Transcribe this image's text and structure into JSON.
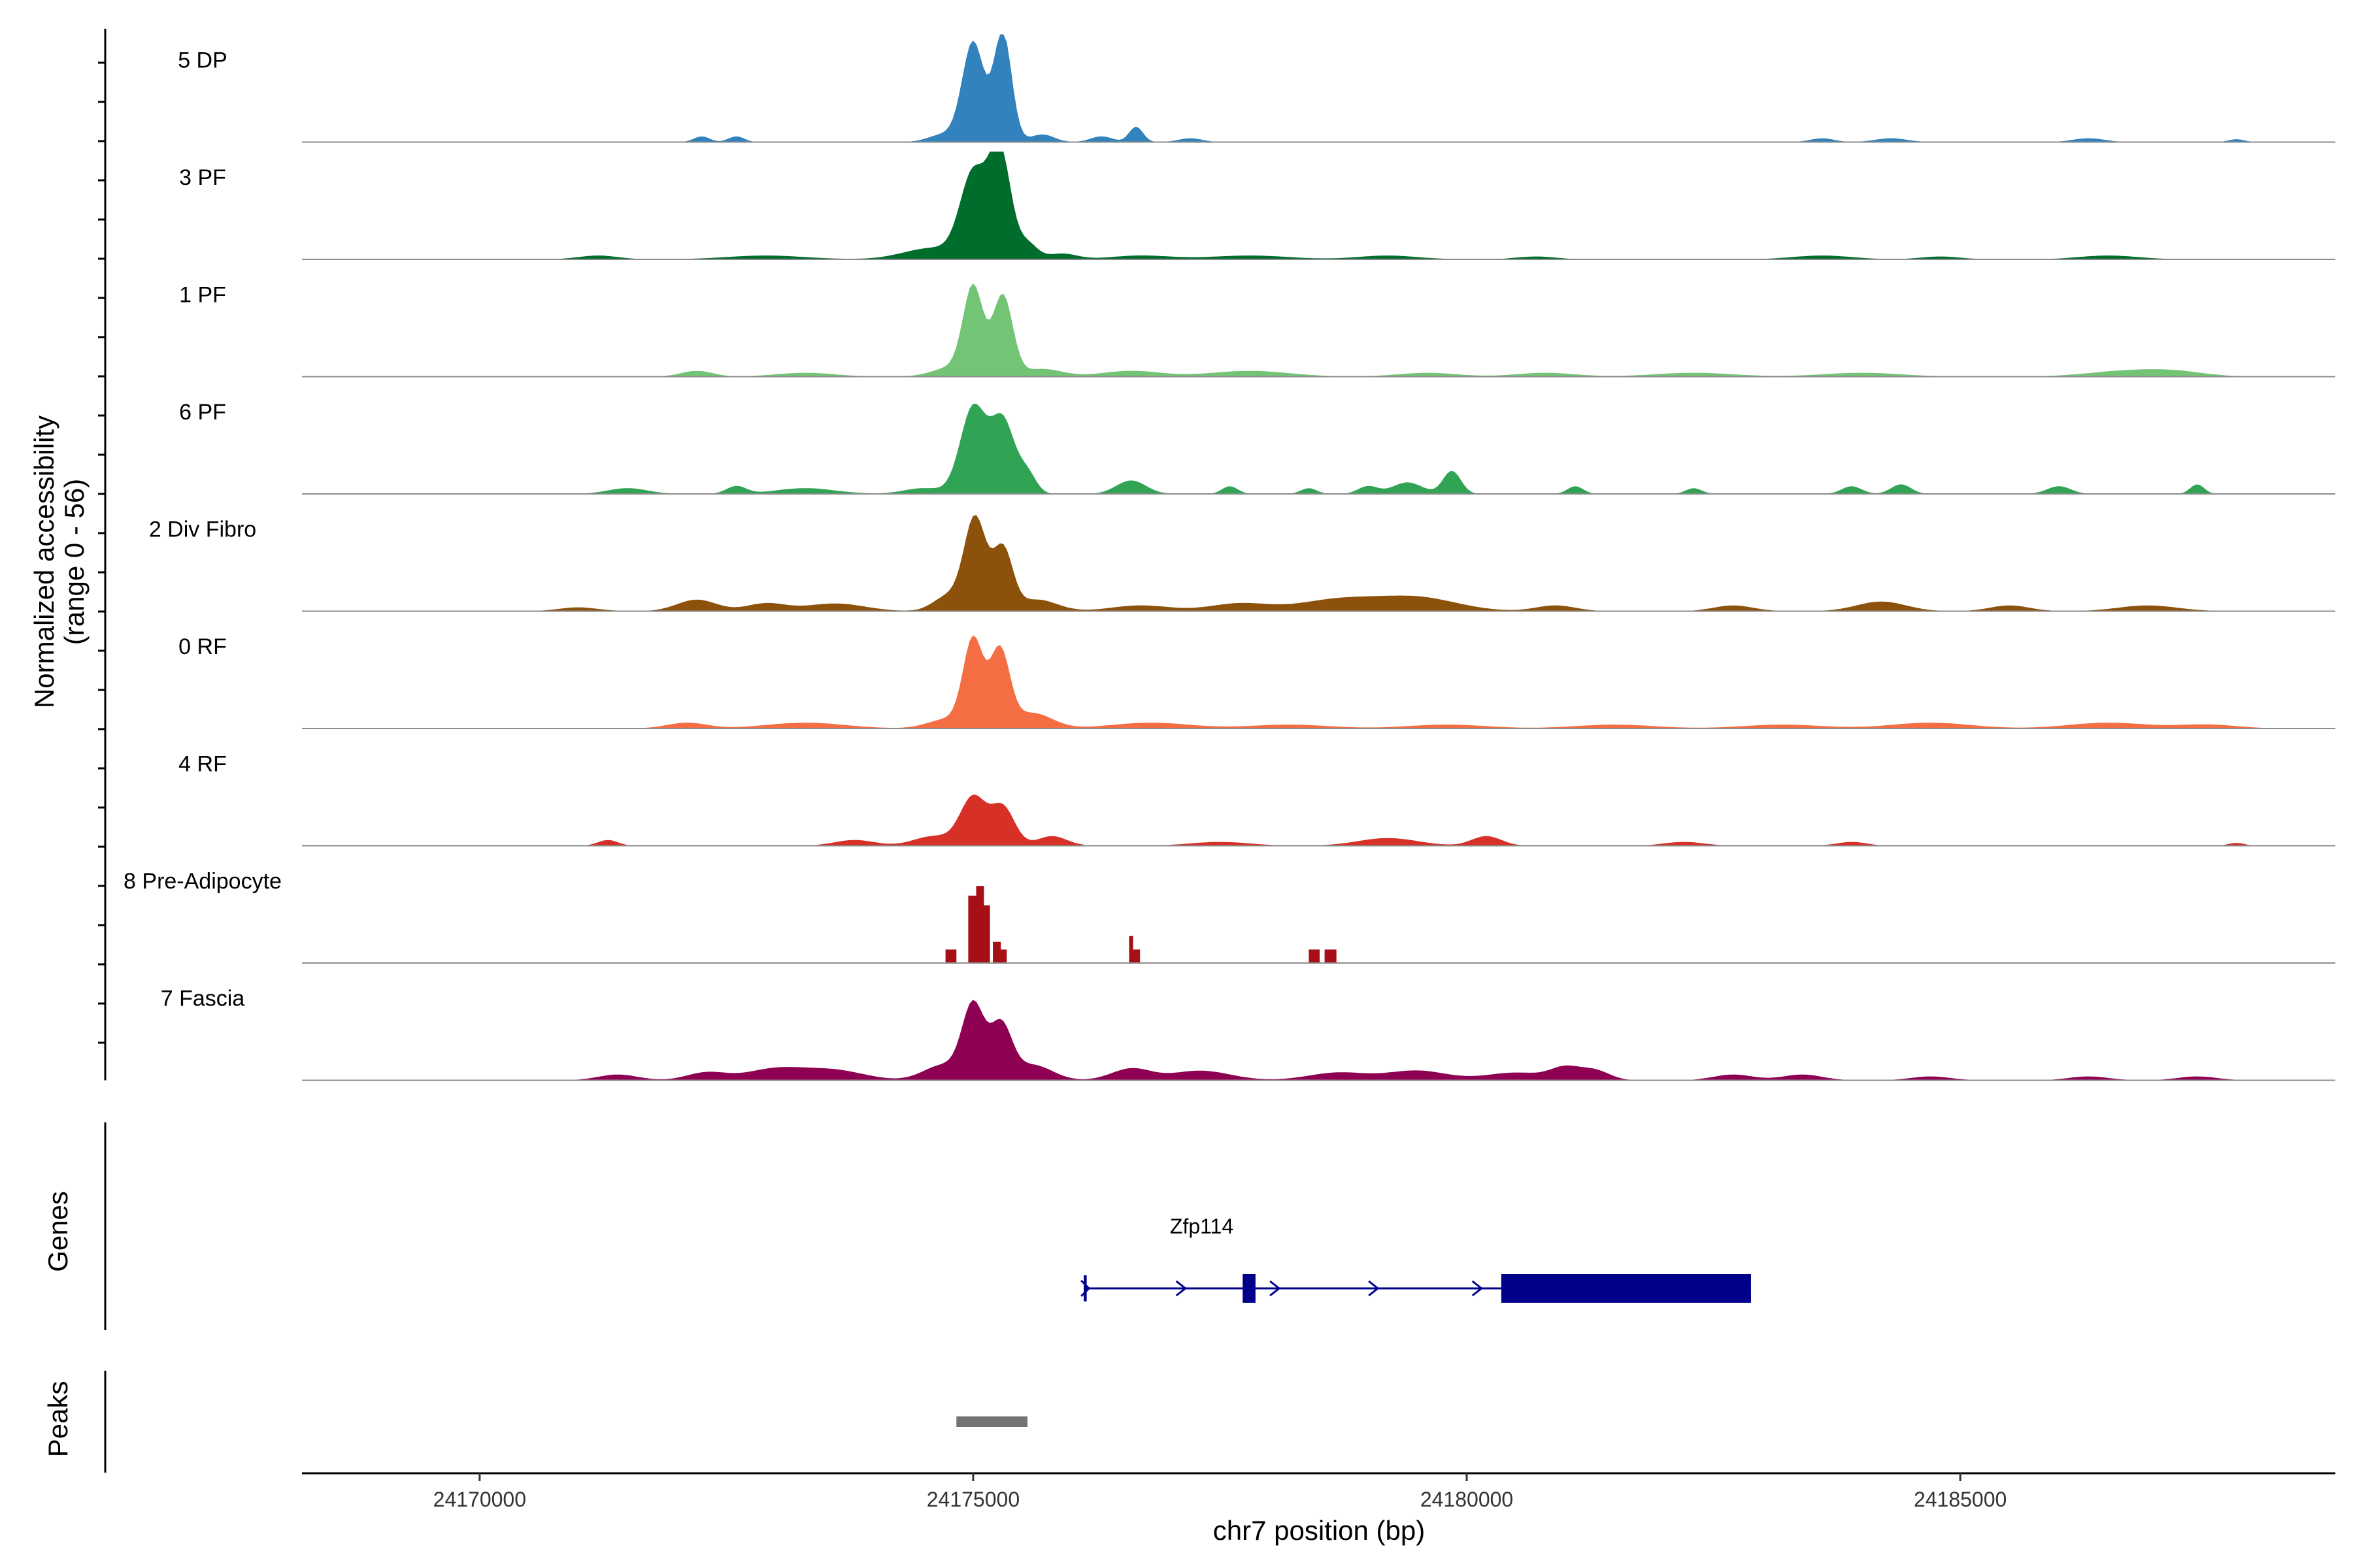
{
  "chart_data": {
    "type": "area",
    "title": "",
    "chromosome": "chr7",
    "xlabel": "chr7 position (bp)",
    "xlim": [
      24168200,
      24188800
    ],
    "xticks": [
      24170000,
      24175000,
      24180000,
      24185000
    ],
    "xtick_labels": [
      "24170000",
      "24175000",
      "24180000",
      "24185000"
    ],
    "ylabel_line1": "Normalized accessibility",
    "ylabel_line2": "(range 0 - 56)",
    "ylim": [
      0,
      56
    ],
    "tracks": [
      {
        "name": "5 DP",
        "color": "#3182bd",
        "peaks": [
          [
            24175000,
            52,
            110
          ],
          [
            24175300,
            57,
            90
          ],
          [
            24174700,
            4,
            150
          ],
          [
            24175700,
            4,
            120
          ],
          [
            24176300,
            3,
            110
          ],
          [
            24176650,
            8,
            70
          ],
          [
            24172250,
            3,
            80
          ],
          [
            24172600,
            3,
            80
          ],
          [
            24177200,
            2,
            120
          ],
          [
            24183600,
            2,
            120
          ],
          [
            24184300,
            2,
            160
          ],
          [
            24186300,
            2,
            160
          ],
          [
            24187800,
            1.5,
            80
          ]
        ]
      },
      {
        "name": "3 PF",
        "color": "#006d2c",
        "peaks": [
          [
            24175000,
            43,
            130
          ],
          [
            24175270,
            56,
            110
          ],
          [
            24174600,
            6,
            300
          ],
          [
            24175550,
            8,
            100
          ],
          [
            24175900,
            3,
            150
          ],
          [
            24171200,
            2,
            200
          ],
          [
            24172900,
            2,
            400
          ],
          [
            24176700,
            2,
            300
          ],
          [
            24177800,
            2,
            400
          ],
          [
            24179200,
            2,
            300
          ],
          [
            24180700,
            1.5,
            200
          ],
          [
            24183600,
            2,
            300
          ],
          [
            24184800,
            1.5,
            200
          ],
          [
            24186500,
            2,
            300
          ]
        ]
      },
      {
        "name": "1 PF",
        "color": "#74c476",
        "peaks": [
          [
            24175000,
            45,
            100
          ],
          [
            24175300,
            42,
            100
          ],
          [
            24174800,
            5,
            200
          ],
          [
            24175700,
            4,
            200
          ],
          [
            24172200,
            3,
            160
          ],
          [
            24173300,
            2,
            300
          ],
          [
            24176600,
            3,
            300
          ],
          [
            24177800,
            3,
            400
          ],
          [
            24179600,
            2,
            300
          ],
          [
            24180800,
            2,
            300
          ],
          [
            24182300,
            2,
            400
          ],
          [
            24184000,
            2,
            400
          ],
          [
            24186700,
            3,
            400
          ],
          [
            24187200,
            2,
            300
          ]
        ]
      },
      {
        "name": "6 PF",
        "color": "#31a354",
        "peaks": [
          [
            24175000,
            45,
            130
          ],
          [
            24175300,
            38,
            120
          ],
          [
            24175550,
            10,
            90
          ],
          [
            24174500,
            3,
            200
          ],
          [
            24171500,
            3,
            200
          ],
          [
            24172600,
            4,
            100
          ],
          [
            24173300,
            3,
            300
          ],
          [
            24176600,
            7,
            150
          ],
          [
            24177600,
            4,
            80
          ],
          [
            24178400,
            3,
            80
          ],
          [
            24179000,
            4,
            100
          ],
          [
            24179400,
            6,
            150
          ],
          [
            24179850,
            12,
            90
          ],
          [
            24181100,
            4,
            80
          ],
          [
            24182300,
            3,
            80
          ],
          [
            24183900,
            4,
            100
          ],
          [
            24184400,
            5,
            100
          ],
          [
            24186000,
            4,
            120
          ],
          [
            24187400,
            5,
            70
          ]
        ]
      },
      {
        "name": "2 Div Fibro",
        "color": "#8c510a",
        "peaks": [
          [
            24175020,
            48,
            110
          ],
          [
            24175300,
            32,
            100
          ],
          [
            24174750,
            8,
            150
          ],
          [
            24175650,
            6,
            200
          ],
          [
            24171000,
            2,
            200
          ],
          [
            24172200,
            6,
            200
          ],
          [
            24172900,
            4,
            200
          ],
          [
            24173600,
            4,
            300
          ],
          [
            24176700,
            3,
            300
          ],
          [
            24177700,
            4,
            300
          ],
          [
            24178700,
            6,
            400
          ],
          [
            24179500,
            7,
            400
          ],
          [
            24180900,
            3,
            200
          ],
          [
            24182700,
            3,
            200
          ],
          [
            24184200,
            5,
            250
          ],
          [
            24185500,
            3,
            200
          ],
          [
            24186900,
            3,
            300
          ]
        ]
      },
      {
        "name": "0 RF",
        "color": "#f46d43",
        "peaks": [
          [
            24175000,
            45,
            100
          ],
          [
            24175270,
            40,
            100
          ],
          [
            24174750,
            5,
            200
          ],
          [
            24175600,
            8,
            200
          ],
          [
            24172100,
            3,
            200
          ],
          [
            24173300,
            3,
            400
          ],
          [
            24176800,
            3,
            400
          ],
          [
            24178200,
            2,
            400
          ],
          [
            24179800,
            2,
            400
          ],
          [
            24181500,
            2,
            400
          ],
          [
            24183200,
            2,
            400
          ],
          [
            24184700,
            3,
            400
          ],
          [
            24186500,
            3,
            400
          ],
          [
            24187500,
            2,
            300
          ]
        ]
      },
      {
        "name": "4 RF",
        "color": "#d73027",
        "peaks": [
          [
            24175000,
            25,
            130
          ],
          [
            24175300,
            20,
            120
          ],
          [
            24174600,
            5,
            200
          ],
          [
            24175800,
            5,
            150
          ],
          [
            24171300,
            3,
            100
          ],
          [
            24173800,
            3,
            200
          ],
          [
            24177500,
            2,
            300
          ],
          [
            24179200,
            4,
            300
          ],
          [
            24180200,
            5,
            150
          ],
          [
            24182200,
            2,
            200
          ],
          [
            24183900,
            2,
            150
          ],
          [
            24187800,
            1.5,
            80
          ]
        ]
      },
      {
        "name": "8 Pre-Adipocyte",
        "color": "#a50f15",
        "blocks": [
          [
            24174720,
            24174830,
            7
          ],
          [
            24174950,
            24175030,
            35
          ],
          [
            24175030,
            24175110,
            40
          ],
          [
            24175110,
            24175170,
            30
          ],
          [
            24175200,
            24175280,
            11
          ],
          [
            24175280,
            24175340,
            7
          ],
          [
            24176580,
            24176620,
            14
          ],
          [
            24176620,
            24176690,
            7
          ],
          [
            24178400,
            24178510,
            7
          ],
          [
            24178560,
            24178680,
            7
          ]
        ]
      },
      {
        "name": "7 Fascia",
        "color": "#8e0152",
        "peaks": [
          [
            24175000,
            38,
            110
          ],
          [
            24175280,
            28,
            110
          ],
          [
            24174700,
            8,
            200
          ],
          [
            24175600,
            8,
            200
          ],
          [
            24171400,
            3,
            200
          ],
          [
            24172300,
            4,
            200
          ],
          [
            24173000,
            6,
            300
          ],
          [
            24173600,
            5,
            300
          ],
          [
            24176600,
            6,
            200
          ],
          [
            24177300,
            5,
            300
          ],
          [
            24178700,
            4,
            300
          ],
          [
            24179500,
            5,
            300
          ],
          [
            24180500,
            4,
            300
          ],
          [
            24181000,
            6,
            150
          ],
          [
            24181300,
            5,
            150
          ],
          [
            24182700,
            3,
            200
          ],
          [
            24183400,
            3,
            200
          ],
          [
            24184700,
            2,
            200
          ],
          [
            24186300,
            2,
            200
          ],
          [
            24187400,
            2,
            200
          ]
        ]
      }
    ],
    "genes_label": "Genes",
    "gene": {
      "name": "Zfp114",
      "color": "#00008b",
      "start": 24176120,
      "end": 24182880,
      "strand": "+",
      "exons": [
        [
          24176120,
          24176150
        ],
        [
          24177730,
          24177860
        ],
        [
          24180350,
          24182880
        ]
      ],
      "arrows": [
        24177150,
        24178100,
        24179100,
        24180150
      ]
    },
    "peaks_label": "Peaks",
    "peak_regions": [
      {
        "start": 24174830,
        "end": 24175550,
        "color": "#737373"
      }
    ]
  }
}
